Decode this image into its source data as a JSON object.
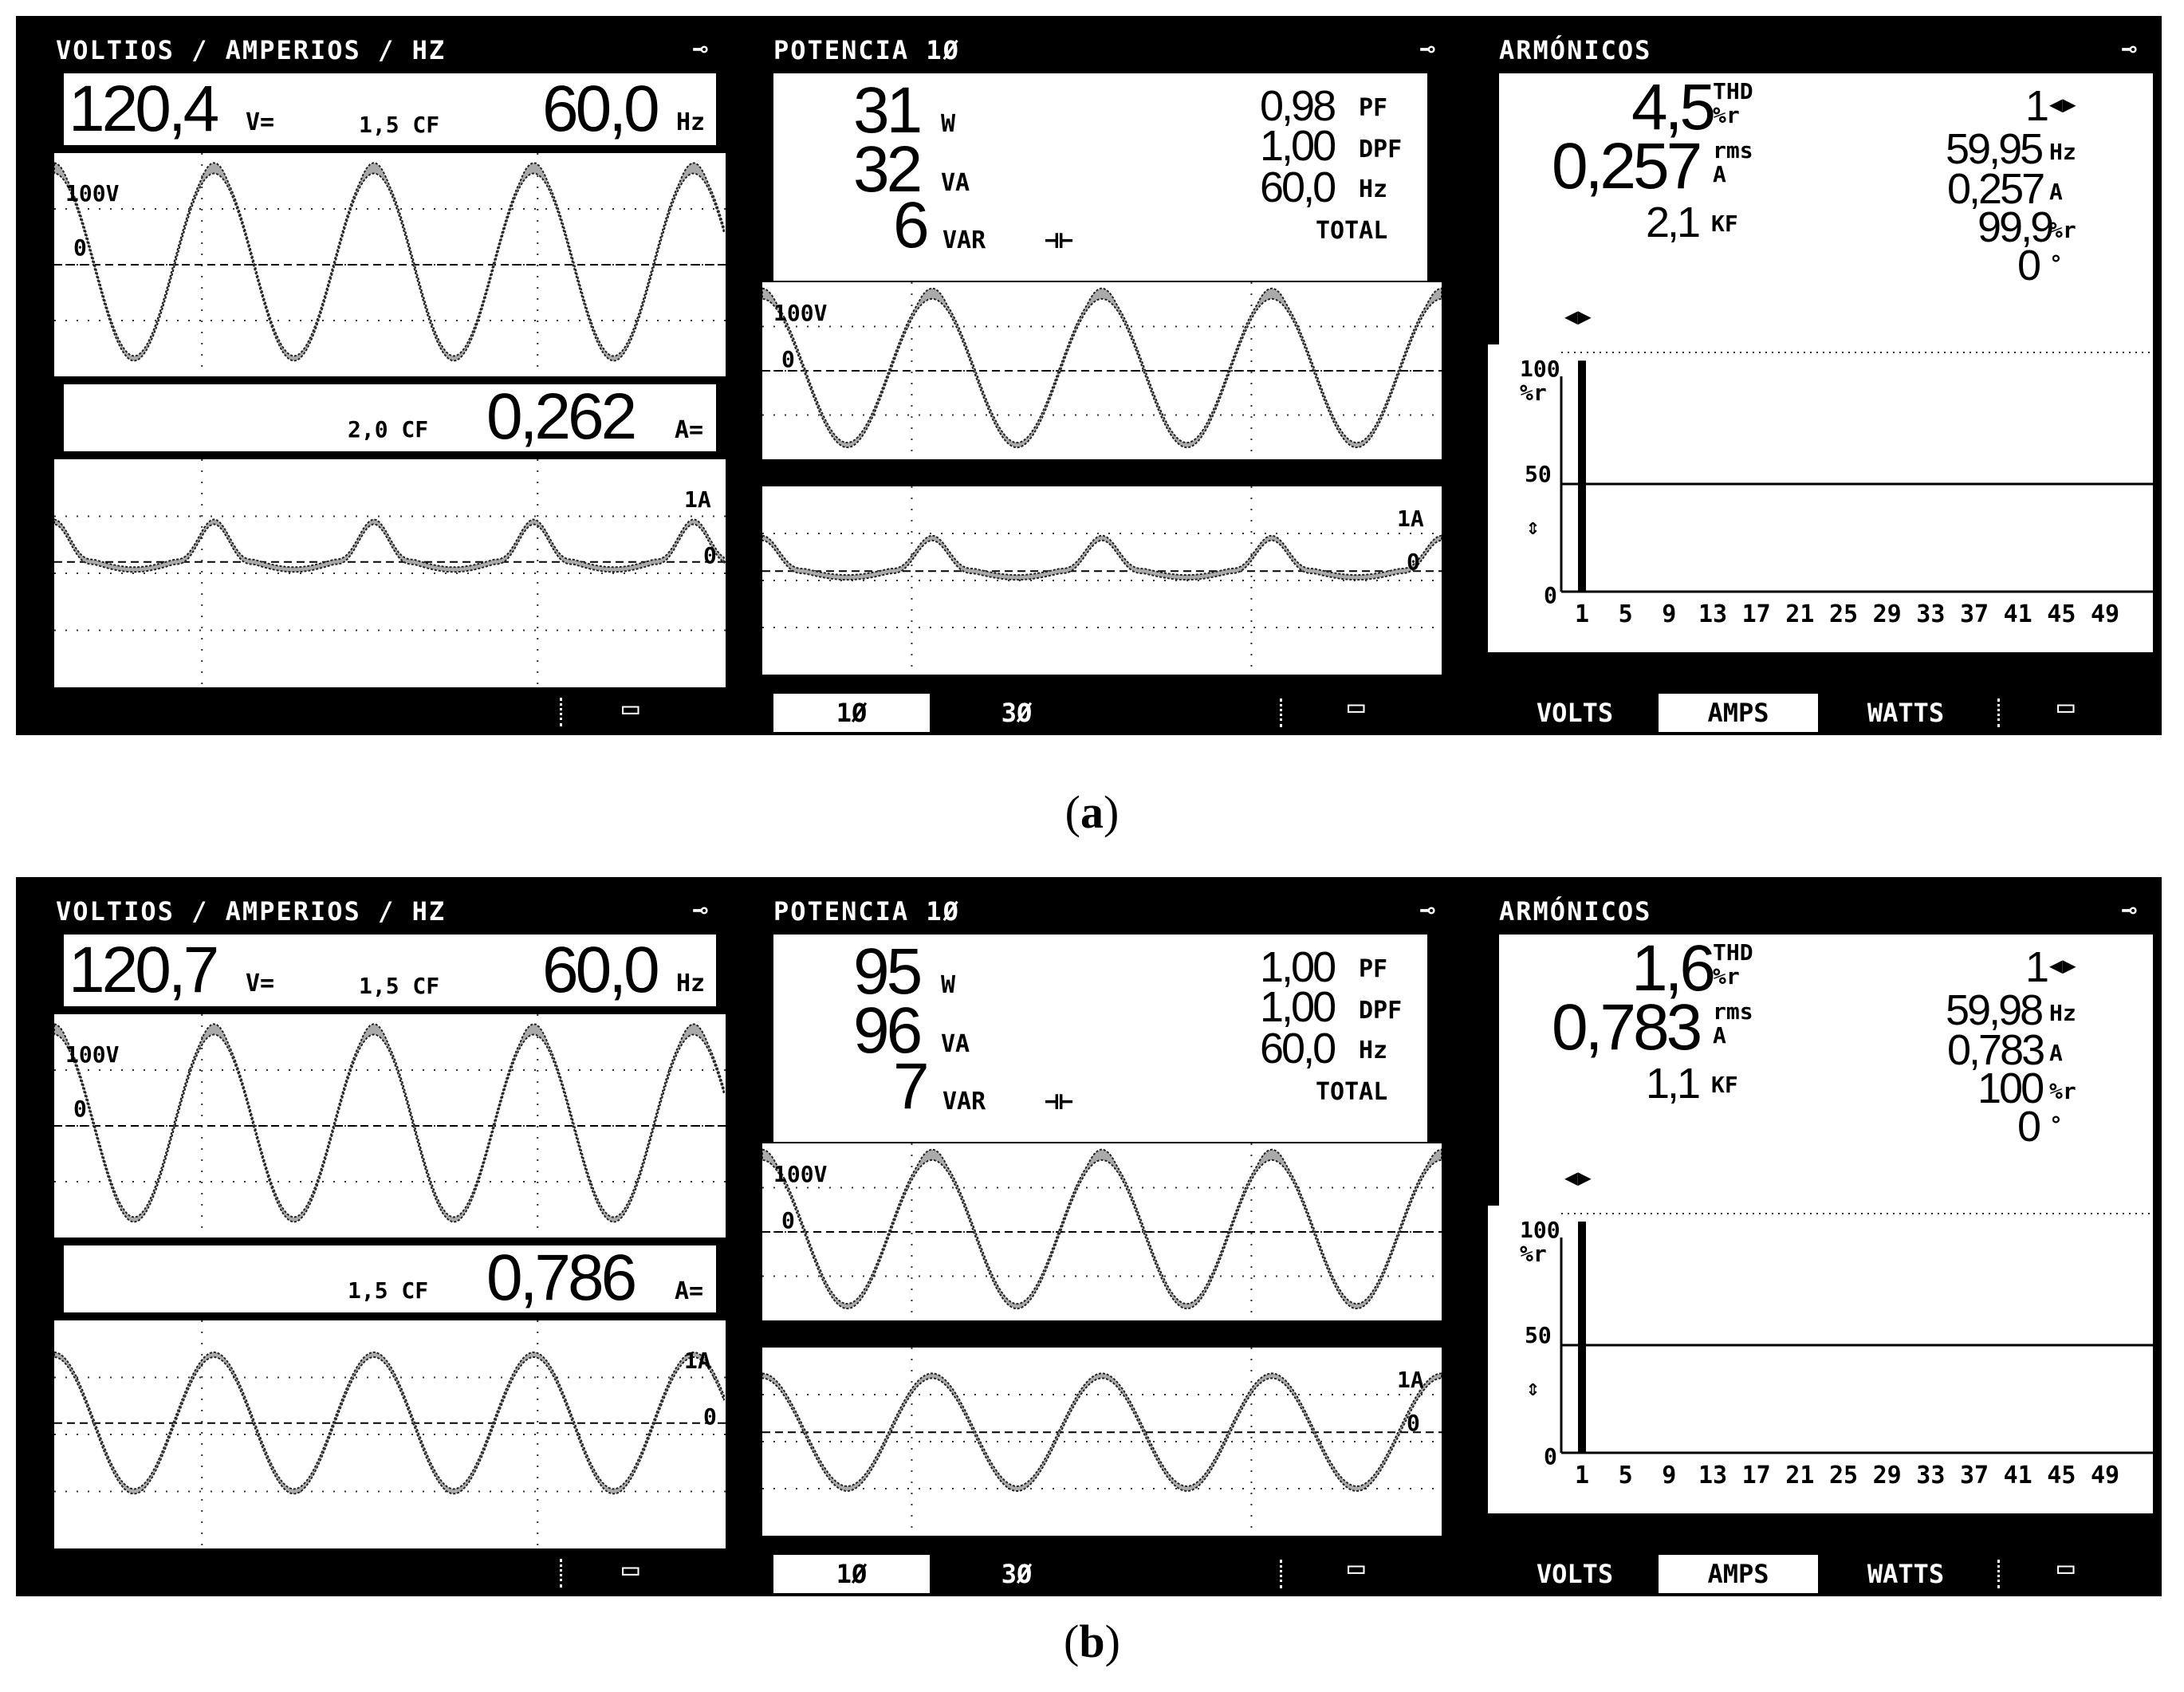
{
  "figures": [
    {
      "caption_label": "a",
      "vahz": {
        "title": "VOLTIOS / AMPERIOS / HZ",
        "voltage": "120,4",
        "voltage_unit": "V=",
        "voltage_cf": "1,5 CF",
        "frequency": "60,0",
        "frequency_unit": "Hz",
        "scope_v_label": "100V",
        "scope_zero": "0",
        "current_cf": "2,0 CF",
        "current": "0,262",
        "current_unit": "A=",
        "scope_a_label": "1A"
      },
      "potencia": {
        "title": "POTENCIA 1Ø",
        "w": "31",
        "w_unit": "W",
        "va": "32",
        "va_unit": "VA",
        "var": "6",
        "var_unit": "VAR",
        "pf": "0,98",
        "pf_unit": "PF",
        "dpf": "1,00",
        "dpf_unit": "DPF",
        "hz": "60,0",
        "hz_unit": "Hz",
        "total": "TOTAL",
        "scope_v_label": "100V",
        "scope_zero": "0",
        "scope_a_label": "1A",
        "tab1": "1Ø",
        "tab2": "3Ø"
      },
      "armonicos": {
        "title": "ARMÓNICOS",
        "thd": "4,5",
        "thd_unit_top": "THD",
        "thd_unit_bottom": "%r",
        "rms": "0,257",
        "rms_unit_top": "rms",
        "rms_unit_bottom": "A",
        "kf": "2,1",
        "kf_unit": "KF",
        "harmonic_no": "1",
        "freq": "59,95",
        "freq_unit": "Hz",
        "amps": "0,257",
        "amps_unit": "A",
        "pct": "99,9",
        "pct_unit": "%r",
        "phase": "0",
        "phase_unit": "°",
        "y_top": "100",
        "y_unit": "%r",
        "y_mid": "50",
        "y_zero": "0",
        "x_labels": [
          "1",
          "5",
          "9",
          "13",
          "17",
          "21",
          "25",
          "29",
          "33",
          "37",
          "41",
          "45",
          "49"
        ],
        "tabs": [
          "VOLTS",
          "AMPS",
          "WATTS"
        ]
      },
      "current_distorted": true
    },
    {
      "caption_label": "b",
      "vahz": {
        "title": "VOLTIOS / AMPERIOS / HZ",
        "voltage": "120,7",
        "voltage_unit": "V=",
        "voltage_cf": "1,5 CF",
        "frequency": "60,0",
        "frequency_unit": "Hz",
        "scope_v_label": "100V",
        "scope_zero": "0",
        "current_cf": "1,5 CF",
        "current": "0,786",
        "current_unit": "A=",
        "scope_a_label": "1A"
      },
      "potencia": {
        "title": "POTENCIA 1Ø",
        "w": "95",
        "w_unit": "W",
        "va": "96",
        "va_unit": "VA",
        "var": "7",
        "var_unit": "VAR",
        "pf": "1,00",
        "pf_unit": "PF",
        "dpf": "1,00",
        "dpf_unit": "DPF",
        "hz": "60,0",
        "hz_unit": "Hz",
        "total": "TOTAL",
        "scope_v_label": "100V",
        "scope_zero": "0",
        "scope_a_label": "1A",
        "tab1": "1Ø",
        "tab2": "3Ø"
      },
      "armonicos": {
        "title": "ARMÓNICOS",
        "thd": "1,6",
        "thd_unit_top": "THD",
        "thd_unit_bottom": "%r",
        "rms": "0,783",
        "rms_unit_top": "rms",
        "rms_unit_bottom": "A",
        "kf": "1,1",
        "kf_unit": "KF",
        "harmonic_no": "1",
        "freq": "59,98",
        "freq_unit": "Hz",
        "amps": "0,783",
        "amps_unit": "A",
        "pct": "100",
        "pct_unit": "%r",
        "phase": "0",
        "phase_unit": "°",
        "y_top": "100",
        "y_unit": "%r",
        "y_mid": "50",
        "y_zero": "0",
        "x_labels": [
          "1",
          "5",
          "9",
          "13",
          "17",
          "21",
          "25",
          "29",
          "33",
          "37",
          "41",
          "45",
          "49"
        ],
        "tabs": [
          "VOLTS",
          "AMPS",
          "WATTS"
        ]
      },
      "current_distorted": false
    }
  ]
}
